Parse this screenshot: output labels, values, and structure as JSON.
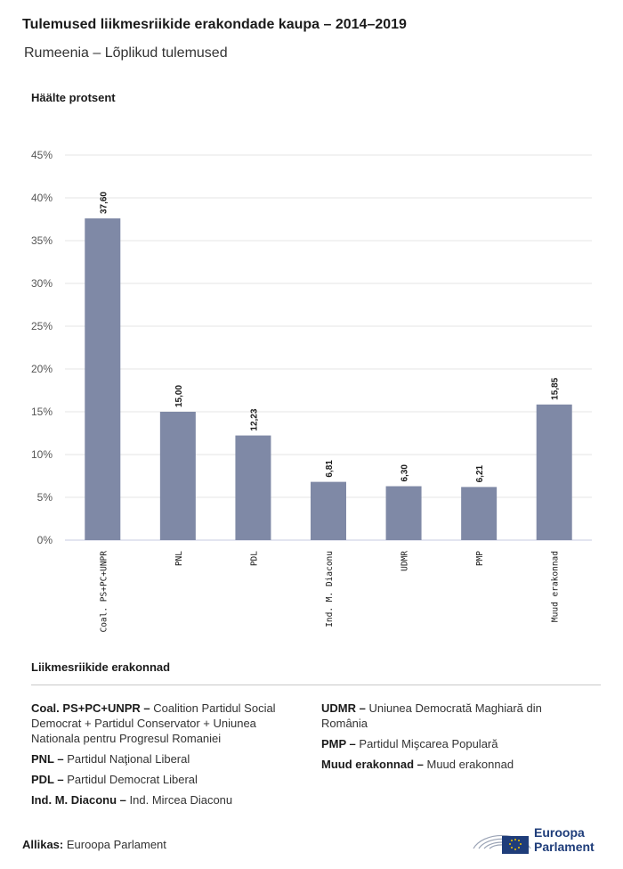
{
  "header": {
    "title": "Tulemused liikmesriikide erakondade kaupa – 2014–2019",
    "subtitle": "Rumeenia – Lõplikud tulemused"
  },
  "chart_data": {
    "type": "bar",
    "title": "Tulemused liikmesriikide erakondade kaupa – 2014–2019",
    "subtitle": "Rumeenia – Lõplikud tulemused",
    "ylabel": "Häälte protsent",
    "xlabel": "",
    "categories": [
      "Coal. PS+PC+UNPR",
      "PNL",
      "PDL",
      "Ind. M. Diaconu",
      "UDMR",
      "PMP",
      "Muud erakonnad"
    ],
    "values": [
      37.6,
      15.0,
      12.23,
      6.81,
      6.3,
      6.21,
      15.85
    ],
    "value_labels": [
      "37,60",
      "15,00",
      "12,23",
      "6,81",
      "6,30",
      "6,21",
      "15,85"
    ],
    "ylim": [
      0,
      45
    ],
    "yticks": [
      0,
      5,
      10,
      15,
      20,
      25,
      30,
      35,
      40,
      45
    ],
    "ytick_labels": [
      "0%",
      "5%",
      "10%",
      "15%",
      "20%",
      "25%",
      "30%",
      "35%",
      "40%",
      "45%"
    ],
    "grid": true,
    "bar_color": "#7f89a6"
  },
  "legend": {
    "heading": "Liikmesriikide erakonnad",
    "left": [
      {
        "abbr": "Coal. PS+PC+UNPR –",
        "name": "Coalition Partidul Social Democrat + Partidul Conservator + Uniunea Nationala pentru Progresul Romaniei"
      },
      {
        "abbr": "PNL –",
        "name": "Partidul Naţional Liberal"
      },
      {
        "abbr": "PDL –",
        "name": "Partidul Democrat Liberal"
      },
      {
        "abbr": "Ind. M. Diaconu –",
        "name": "Ind. Mircea Diaconu"
      }
    ],
    "right": [
      {
        "abbr": "UDMR –",
        "name": "Uniunea Democrată Maghiară din România"
      },
      {
        "abbr": "PMP –",
        "name": "Partidul Mişcarea Populară"
      },
      {
        "abbr": "Muud erakonnad –",
        "name": "Muud erakonnad"
      }
    ]
  },
  "footer": {
    "source_label": "Allikas:",
    "source_value": "Euroopa Parlament",
    "logo_line1": "Euroopa",
    "logo_line2": "Parlament"
  }
}
